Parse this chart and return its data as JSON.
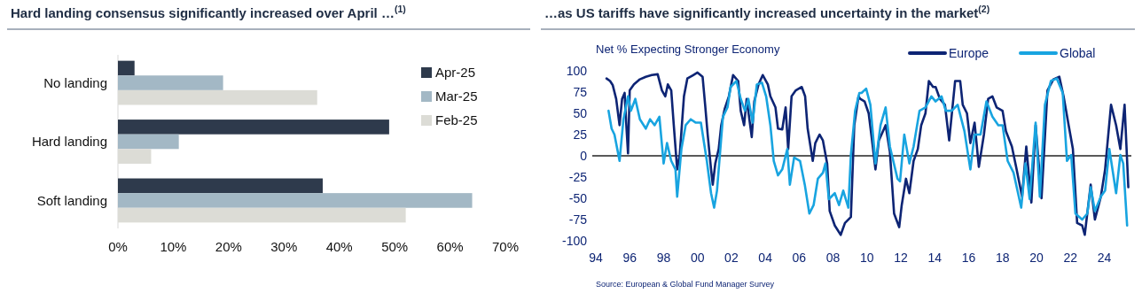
{
  "chart_data": [
    {
      "type": "bar",
      "orientation": "horizontal",
      "title": "Hard landing consensus significantly increased over April …$^{(1)}$",
      "categories": [
        "No landing",
        "Hard landing",
        "Soft landing"
      ],
      "series": [
        {
          "name": "Apr-25",
          "color": "#2e3a4c",
          "values": [
            3,
            49,
            37
          ]
        },
        {
          "name": "Mar-25",
          "color": "#a3b8c5",
          "values": [
            19,
            11,
            64
          ]
        },
        {
          "name": "Feb-25",
          "color": "#dcdcd6",
          "values": [
            36,
            6,
            52
          ]
        }
      ],
      "xlim": [
        0,
        70
      ],
      "xticks": [
        {
          "value": 0,
          "label": "0%"
        },
        {
          "value": 10,
          "label": "10%"
        },
        {
          "value": 20,
          "label": "20%"
        },
        {
          "value": 30,
          "label": "30%"
        },
        {
          "value": 40,
          "label": "40%"
        },
        {
          "value": 50,
          "label": "50%"
        },
        {
          "value": 60,
          "label": "60%"
        },
        {
          "value": 70,
          "label": "70%"
        }
      ],
      "legend": "right"
    },
    {
      "type": "line",
      "title": "…as US tariffs have significantly increased uncertainty in the market$^{(2)}$",
      "subtitle": "Net % Expecting Stronger Economy",
      "series": [
        {
          "name": "Europe",
          "color": "#0d2474",
          "x": [
            1994.63,
            1994.84,
            1995.0,
            1995.2,
            1995.4,
            1995.55,
            1995.7,
            1995.8,
            1995.9,
            1996.0,
            1996.25,
            1996.6,
            1996.95,
            1997.3,
            1997.65,
            1997.9,
            1998.1,
            1998.25,
            1998.45,
            1998.6,
            1998.8,
            1998.95,
            1999.2,
            1999.4,
            1999.75,
            2000.0,
            2000.3,
            2000.45,
            2000.6,
            2000.8,
            2000.9,
            2001.05,
            2001.25,
            2001.4,
            2001.6,
            2001.85,
            2002.1,
            2002.4,
            2002.55,
            2002.75,
            2002.9,
            2003.2,
            2003.35,
            2003.6,
            2003.85,
            2004.15,
            2004.3,
            2004.6,
            2004.75,
            2005.0,
            2005.2,
            2005.35,
            2005.55,
            2005.8,
            2006.15,
            2006.35,
            2006.5,
            2006.8,
            2006.95,
            2007.2,
            2007.4,
            2007.65,
            2007.8,
            2008.1,
            2008.45,
            2008.7,
            2009.05,
            2009.25,
            2009.5,
            2009.6,
            2009.86,
            2010.1,
            2010.3,
            2010.5,
            2010.7,
            2011.1,
            2011.35,
            2011.6,
            2011.9,
            2012.05,
            2012.3,
            2012.5,
            2012.75,
            2013.0,
            2013.2,
            2013.45,
            2013.65,
            2013.9,
            2014.05,
            2014.3,
            2014.6,
            2014.85,
            2015.2,
            2015.5,
            2015.65,
            2015.9,
            2016.1,
            2016.35,
            2016.6,
            2016.9,
            2017.15,
            2017.4,
            2017.65,
            2018.0,
            2018.2,
            2018.55,
            2018.8,
            2019.15,
            2019.4,
            2019.7,
            2019.95,
            2020.3,
            2020.65,
            2021.0,
            2021.35,
            2021.6,
            2021.9,
            2022.15,
            2022.4,
            2022.7,
            2022.85,
            2023.2,
            2023.45,
            2023.8,
            2024.05,
            2024.4,
            2024.7,
            2024.95,
            2025.2,
            2025.42
          ],
          "values": [
            91,
            88,
            83,
            67,
            36,
            67,
            74,
            36,
            3,
            77,
            84,
            90,
            93,
            95,
            96,
            77,
            70,
            84,
            77,
            36,
            -16,
            1,
            70,
            91,
            95,
            98,
            93,
            60,
            25,
            -16,
            -34,
            -9,
            8,
            36,
            55,
            70,
            95,
            88,
            53,
            36,
            67,
            22,
            64,
            84,
            95,
            84,
            70,
            57,
            32,
            31,
            57,
            8,
            70,
            77,
            81,
            70,
            32,
            -6,
            15,
            25,
            18,
            -9,
            -65,
            -82,
            -93,
            -79,
            -72,
            36,
            70,
            67,
            64,
            50,
            18,
            -16,
            18,
            36,
            5,
            -68,
            -84,
            -58,
            -27,
            -44,
            -6,
            8,
            36,
            50,
            88,
            81,
            81,
            67,
            60,
            18,
            88,
            88,
            60,
            50,
            15,
            39,
            -13,
            25,
            67,
            70,
            57,
            53,
            29,
            11,
            -13,
            -48,
            11,
            -55,
            36,
            -50,
            77,
            90,
            93,
            70,
            36,
            8,
            -79,
            -82,
            -93,
            -34,
            -75,
            -48,
            -16,
            60,
            36,
            8,
            60,
            -37
          ]
        },
        {
          "name": "Global",
          "color": "#18a4e0",
          "x": [
            1994.75,
            1994.93,
            1995.1,
            1995.4,
            1995.63,
            1995.9,
            1996.07,
            1996.33,
            1996.6,
            1996.95,
            1997.2,
            1997.47,
            1997.75,
            1998.0,
            1998.2,
            1998.45,
            1998.7,
            1998.8,
            1999.05,
            1999.3,
            1999.6,
            1999.9,
            2000.2,
            2000.55,
            2000.8,
            2000.98,
            2001.15,
            2001.5,
            2001.77,
            2001.95,
            2002.3,
            2002.55,
            2002.8,
            2003.0,
            2003.25,
            2003.5,
            2003.8,
            2004.05,
            2004.3,
            2004.5,
            2004.75,
            2005.0,
            2005.3,
            2005.45,
            2005.7,
            2006.05,
            2006.33,
            2006.6,
            2006.85,
            2007.1,
            2007.4,
            2007.55,
            2007.75,
            2008.1,
            2008.35,
            2008.6,
            2008.9,
            2009.05,
            2009.3,
            2009.55,
            2009.68,
            2009.95,
            2010.2,
            2010.5,
            2010.8,
            2011.1,
            2011.35,
            2011.8,
            2011.95,
            2012.2,
            2012.5,
            2012.75,
            2013.1,
            2013.45,
            2013.8,
            2014.05,
            2014.4,
            2014.65,
            2015.0,
            2015.35,
            2015.75,
            2016.1,
            2016.35,
            2016.7,
            2017.05,
            2017.4,
            2017.75,
            2018.0,
            2018.3,
            2018.65,
            2019.1,
            2019.35,
            2019.6,
            2019.95,
            2020.2,
            2020.5,
            2020.85,
            2021.2,
            2021.55,
            2021.8,
            2022.05,
            2022.3,
            2022.7,
            2023.0,
            2023.2,
            2023.45,
            2023.8,
            2024.05,
            2024.3,
            2024.7,
            2024.95,
            2025.12,
            2025.35
          ],
          "values": [
            53,
            32,
            25,
            -6,
            43,
            70,
            53,
            67,
            43,
            32,
            43,
            36,
            46,
            -9,
            15,
            -6,
            -16,
            -48,
            8,
            36,
            43,
            39,
            39,
            -6,
            -44,
            -61,
            -41,
            46,
            57,
            81,
            88,
            67,
            53,
            67,
            39,
            84,
            86,
            70,
            36,
            -6,
            -23,
            -16,
            8,
            -34,
            -2,
            -6,
            -34,
            -68,
            -58,
            -27,
            -20,
            -9,
            -51,
            -44,
            -58,
            -41,
            -61,
            1,
            53,
            74,
            74,
            79,
            60,
            -9,
            36,
            57,
            11,
            -27,
            -30,
            25,
            -9,
            11,
            53,
            57,
            70,
            64,
            70,
            53,
            53,
            60,
            29,
            -16,
            25,
            25,
            64,
            46,
            36,
            36,
            -6,
            -20,
            -61,
            -9,
            -51,
            39,
            -48,
            60,
            88,
            91,
            74,
            -6,
            1,
            -68,
            -75,
            -68,
            -37,
            -65,
            -48,
            -41,
            8,
            -44,
            1,
            -9,
            -82
          ]
        }
      ],
      "xlim": [
        1994,
        2025.6
      ],
      "xticks": [
        {
          "value": 1994,
          "label": "94"
        },
        {
          "value": 1996,
          "label": "96"
        },
        {
          "value": 1998,
          "label": "98"
        },
        {
          "value": 2000,
          "label": "00"
        },
        {
          "value": 2002,
          "label": "02"
        },
        {
          "value": 2004,
          "label": "04"
        },
        {
          "value": 2006,
          "label": "06"
        },
        {
          "value": 2008,
          "label": "08"
        },
        {
          "value": 2010,
          "label": "10"
        },
        {
          "value": 2012,
          "label": "12"
        },
        {
          "value": 2014,
          "label": "14"
        },
        {
          "value": 2016,
          "label": "16"
        },
        {
          "value": 2018,
          "label": "18"
        },
        {
          "value": 2020,
          "label": "20"
        },
        {
          "value": 2022,
          "label": "22"
        },
        {
          "value": 2024,
          "label": "24"
        }
      ],
      "ylim": [
        -100,
        100
      ],
      "yticks": [
        -100,
        -75,
        -50,
        -25,
        0,
        25,
        50,
        75,
        100
      ],
      "ref_lines": [
        {
          "axis": "y",
          "value": 0,
          "color": "#222222"
        }
      ],
      "legend": "top right",
      "annotations": [
        "Source: European & Global Fund Manager Survey"
      ]
    }
  ]
}
